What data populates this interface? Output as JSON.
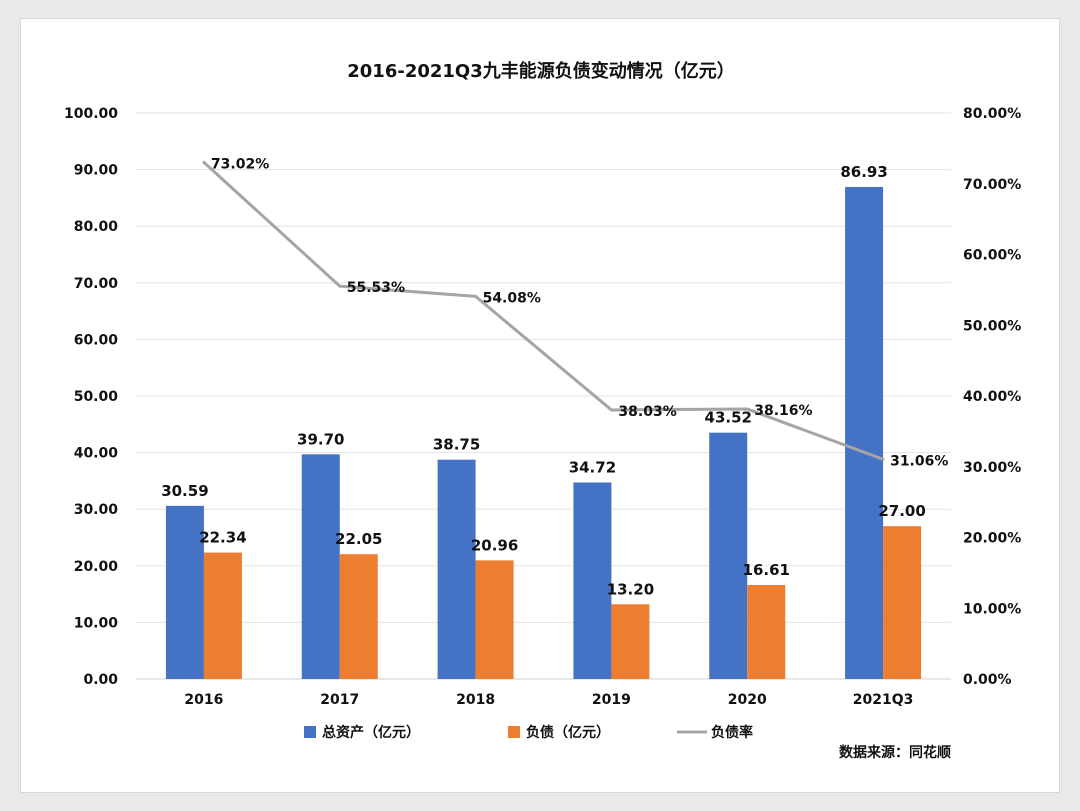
{
  "chart_data": {
    "type": "bar",
    "title": "2016-2021Q3九丰能源负债变动情况（亿元）",
    "categories": [
      "2016",
      "2017",
      "2018",
      "2019",
      "2020",
      "2021Q3"
    ],
    "series": [
      {
        "name": "总资产（亿元）",
        "type": "bar",
        "axis": "left",
        "color": "#4472C4",
        "values": [
          30.59,
          39.7,
          38.75,
          34.72,
          43.52,
          86.93
        ],
        "labels": [
          "30.59",
          "39.70",
          "38.75",
          "34.72",
          "43.52",
          "86.93"
        ]
      },
      {
        "name": "负债（亿元）",
        "type": "bar",
        "axis": "left",
        "color": "#ED7D31",
        "values": [
          22.34,
          22.05,
          20.96,
          13.2,
          16.61,
          27.0
        ],
        "labels": [
          "22.34",
          "22.05",
          "20.96",
          "13.20",
          "16.61",
          "27.00"
        ]
      },
      {
        "name": "负债率",
        "type": "line",
        "axis": "right",
        "color": "#A5A5A5",
        "values": [
          73.02,
          55.53,
          54.08,
          38.03,
          38.16,
          31.06
        ],
        "labels": [
          "73.02%",
          "55.53%",
          "54.08%",
          "38.03%",
          "38.16%",
          "31.06%"
        ]
      }
    ],
    "y_left": {
      "ylim": [
        0,
        100
      ],
      "ticks": [
        "0.00",
        "10.00",
        "20.00",
        "30.00",
        "40.00",
        "50.00",
        "60.00",
        "70.00",
        "80.00",
        "90.00",
        "100.00"
      ]
    },
    "y_right": {
      "ylim": [
        0,
        80
      ],
      "ticks": [
        "0.00%",
        "10.00%",
        "20.00%",
        "30.00%",
        "40.00%",
        "50.00%",
        "60.00%",
        "70.00%",
        "80.00%"
      ]
    },
    "grid": true,
    "legend_position": "bottom",
    "source_note": "数据来源：同花顺"
  }
}
